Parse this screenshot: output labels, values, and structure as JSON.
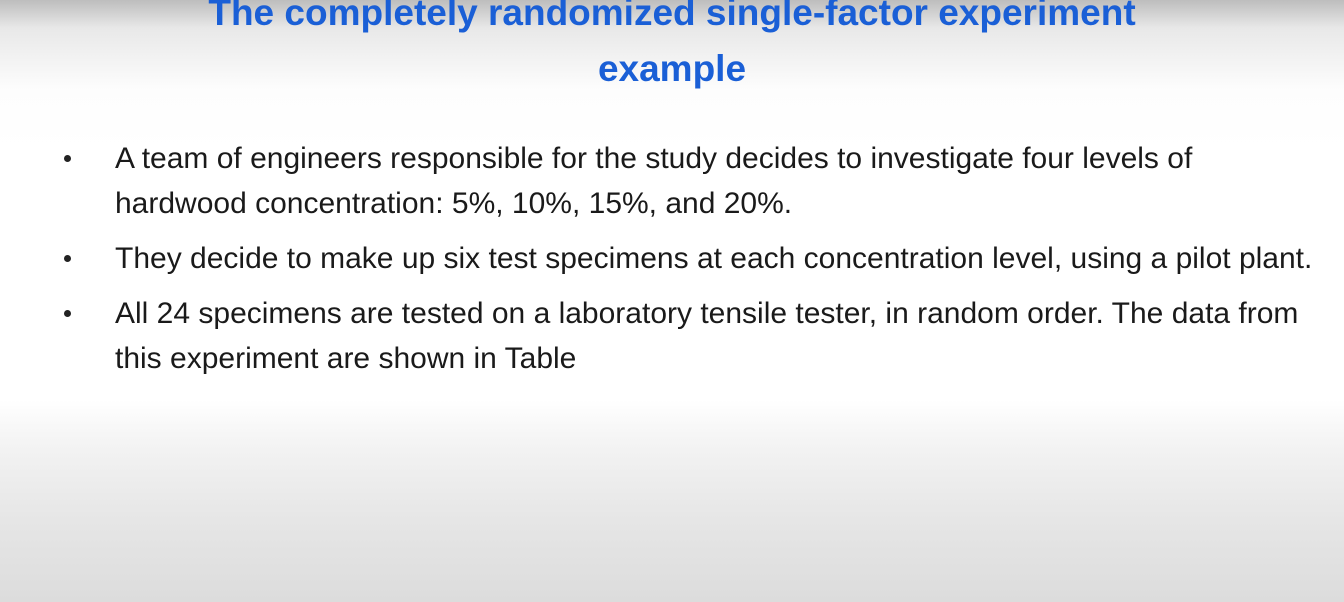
{
  "slide": {
    "title_line1": "The completely randomized single-factor experiment",
    "title_line2": "example",
    "title_color": "#1a5fd6",
    "bullets": [
      {
        "text": "A team of engineers responsible for the study decides to investigate four levels of hardwood concentration: 5%, 10%, 15%, and 20%."
      },
      {
        "text": "They decide to make up six test specimens at each concentration level, using a pilot plant."
      },
      {
        "text": "All 24 specimens are tested on a laboratory tensile tester, in random order. The data from this experiment are shown in Table"
      }
    ]
  }
}
